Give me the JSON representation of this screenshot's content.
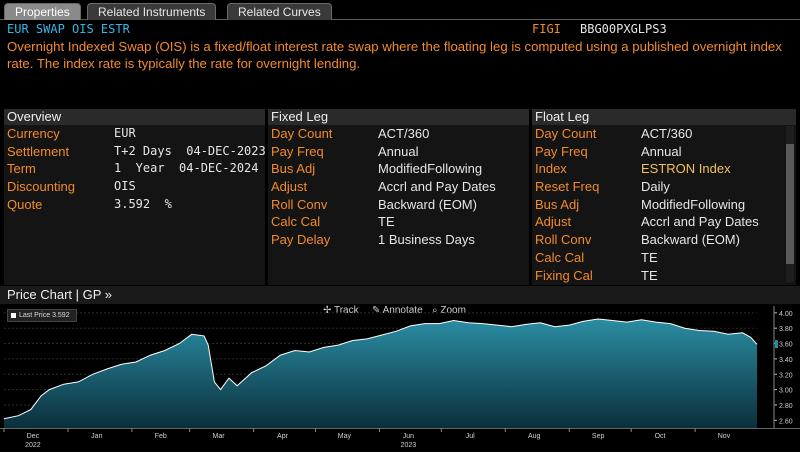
{
  "tabs": [
    {
      "label": "Properties",
      "active": true
    },
    {
      "label": "Related Instruments",
      "active": false
    },
    {
      "label": "Related Curves",
      "active": false
    }
  ],
  "header": {
    "title": "EUR SWAP OIS ESTR",
    "figi_label": "FIGI",
    "figi_value": "BBG00PXGLPS3",
    "description": "Overnight Indexed Swap (OIS) is a fixed/float interest rate swap where the floating leg is computed using a published overnight index rate. The index rate is typically the rate for overnight lending."
  },
  "overview": {
    "heading": "Overview",
    "rows": [
      {
        "label": "Currency",
        "value": "EUR"
      },
      {
        "label": "Settlement",
        "value": "T+2 Days  04-DEC-2023"
      },
      {
        "label": "Term",
        "value": "1  Year  04-DEC-2024"
      },
      {
        "label": "Discounting",
        "value": "OIS"
      },
      {
        "label": "Quote",
        "value": "3.592  %"
      }
    ]
  },
  "fixed_leg": {
    "heading": "Fixed Leg",
    "rows": [
      {
        "label": "Day Count",
        "value": "ACT/360"
      },
      {
        "label": "Pay Freq",
        "value": "Annual"
      },
      {
        "label": "Bus Adj",
        "value": "ModifiedFollowing"
      },
      {
        "label": "Adjust",
        "value": "Accrl and Pay Dates"
      },
      {
        "label": "Roll Conv",
        "value": "Backward (EOM)"
      },
      {
        "label": "Calc Cal",
        "value": "TE"
      },
      {
        "label": "Pay Delay",
        "value": "1 Business Days"
      }
    ]
  },
  "float_leg": {
    "heading": "Float Leg",
    "rows": [
      {
        "label": "Day Count",
        "value": "ACT/360"
      },
      {
        "label": "Pay Freq",
        "value": "Annual"
      },
      {
        "label": "Index",
        "value": "ESTRON Index"
      },
      {
        "label": "Reset Freq",
        "value": "Daily"
      },
      {
        "label": "Bus Adj",
        "value": "ModifiedFollowing"
      },
      {
        "label": "Adjust",
        "value": "Accrl and Pay Dates"
      },
      {
        "label": "Roll Conv",
        "value": "Backward (EOM)"
      },
      {
        "label": "Calc Cal",
        "value": "TE"
      },
      {
        "label": "Fixing Cal",
        "value": "TE"
      }
    ]
  },
  "chart_section": {
    "title": "Price Chart | GP »",
    "tools": {
      "track": "Track",
      "annotate": "Annotate",
      "zoom": "Zoom"
    },
    "legend": "Last Price  3.592"
  },
  "colors": {
    "orange": "#f38b2c",
    "blue_title": "#36b6e8",
    "index_highlight": "#f2c25c",
    "area_top": "#2b8da3",
    "area_bottom": "#0a2f3c"
  },
  "chart_data": {
    "type": "area",
    "title": "",
    "xlabel": "",
    "ylabel": "",
    "ylim": [
      2.5,
      4.05
    ],
    "y_ticks": [
      "4.00",
      "3.80",
      "3.60",
      "3.40",
      "3.20",
      "3.00",
      "2.80",
      "2.60"
    ],
    "y_tick_values": [
      4.0,
      3.8,
      3.6,
      3.4,
      3.2,
      3.0,
      2.8,
      2.6
    ],
    "x_ticks": [
      "Dec",
      "Jan",
      "Feb",
      "Mar",
      "Apr",
      "May",
      "Jun",
      "Jul",
      "Aug",
      "Sep",
      "Oct",
      "Nov"
    ],
    "x_tick_years": [
      "2022",
      "2023"
    ],
    "xlim": [
      "2022-12-01",
      "2023-12-01"
    ],
    "series": [
      {
        "name": "Last Price",
        "last": 3.592,
        "points": [
          [
            "2022-12-01",
            2.62
          ],
          [
            "2022-12-08",
            2.66
          ],
          [
            "2022-12-14",
            2.74
          ],
          [
            "2022-12-19",
            2.92
          ],
          [
            "2022-12-23",
            3.0
          ],
          [
            "2022-12-30",
            3.07
          ],
          [
            "2023-01-06",
            3.1
          ],
          [
            "2023-01-13",
            3.2
          ],
          [
            "2023-01-20",
            3.27
          ],
          [
            "2023-01-27",
            3.33
          ],
          [
            "2023-02-03",
            3.36
          ],
          [
            "2023-02-10",
            3.45
          ],
          [
            "2023-02-17",
            3.51
          ],
          [
            "2023-02-24",
            3.6
          ],
          [
            "2023-03-02",
            3.72
          ],
          [
            "2023-03-08",
            3.7
          ],
          [
            "2023-03-10",
            3.58
          ],
          [
            "2023-03-13",
            3.1
          ],
          [
            "2023-03-16",
            3.0
          ],
          [
            "2023-03-20",
            3.15
          ],
          [
            "2023-03-24",
            3.05
          ],
          [
            "2023-03-31",
            3.22
          ],
          [
            "2023-04-07",
            3.31
          ],
          [
            "2023-04-14",
            3.45
          ],
          [
            "2023-04-21",
            3.51
          ],
          [
            "2023-04-28",
            3.49
          ],
          [
            "2023-05-05",
            3.55
          ],
          [
            "2023-05-12",
            3.58
          ],
          [
            "2023-05-19",
            3.64
          ],
          [
            "2023-05-26",
            3.66
          ],
          [
            "2023-06-02",
            3.71
          ],
          [
            "2023-06-09",
            3.76
          ],
          [
            "2023-06-16",
            3.83
          ],
          [
            "2023-06-23",
            3.86
          ],
          [
            "2023-06-30",
            3.86
          ],
          [
            "2023-07-07",
            3.9
          ],
          [
            "2023-07-14",
            3.87
          ],
          [
            "2023-07-21",
            3.86
          ],
          [
            "2023-07-28",
            3.84
          ],
          [
            "2023-08-04",
            3.82
          ],
          [
            "2023-08-11",
            3.85
          ],
          [
            "2023-08-18",
            3.87
          ],
          [
            "2023-08-25",
            3.82
          ],
          [
            "2023-09-01",
            3.84
          ],
          [
            "2023-09-08",
            3.89
          ],
          [
            "2023-09-15",
            3.92
          ],
          [
            "2023-09-22",
            3.9
          ],
          [
            "2023-09-29",
            3.88
          ],
          [
            "2023-10-06",
            3.91
          ],
          [
            "2023-10-13",
            3.88
          ],
          [
            "2023-10-20",
            3.86
          ],
          [
            "2023-10-27",
            3.8
          ],
          [
            "2023-11-03",
            3.77
          ],
          [
            "2023-11-10",
            3.76
          ],
          [
            "2023-11-17",
            3.72
          ],
          [
            "2023-11-24",
            3.74
          ],
          [
            "2023-11-28",
            3.68
          ],
          [
            "2023-12-01",
            3.59
          ]
        ]
      }
    ]
  }
}
